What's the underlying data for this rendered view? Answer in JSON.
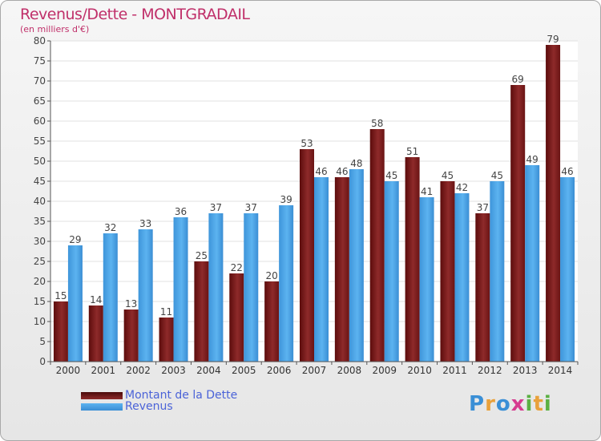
{
  "title": "Revenus/Dette - MONTGRADAIL",
  "subtitle": "(en milliers d'€)",
  "logo_text": "Proxiti",
  "colors": {
    "dette": "#7a1a1a",
    "revenus": "#4aa3e6",
    "title": "#c0306a",
    "legend_text": "#4b63d8"
  },
  "chart_data": {
    "type": "bar",
    "title": "Revenus/Dette - MONTGRADAIL",
    "ylabel": "(en milliers d'€)",
    "xlabel": "",
    "categories": [
      "2000",
      "2001",
      "2002",
      "2003",
      "2004",
      "2005",
      "2006",
      "2007",
      "2008",
      "2009",
      "2010",
      "2011",
      "2012",
      "2013",
      "2014"
    ],
    "series": [
      {
        "name": "Montant de la Dette",
        "values": [
          15,
          14,
          13,
          11,
          25,
          22,
          20,
          53,
          46,
          58,
          51,
          45,
          37,
          69,
          79
        ]
      },
      {
        "name": "Revenus",
        "values": [
          29,
          32,
          33,
          36,
          37,
          37,
          39,
          46,
          48,
          45,
          41,
          42,
          45,
          49,
          46
        ]
      }
    ],
    "ylim": [
      0,
      80
    ],
    "yticks": [
      0,
      5,
      10,
      15,
      20,
      25,
      30,
      35,
      40,
      45,
      50,
      55,
      60,
      65,
      70,
      75,
      80
    ],
    "legend_position": "bottom-left",
    "grid": true
  }
}
